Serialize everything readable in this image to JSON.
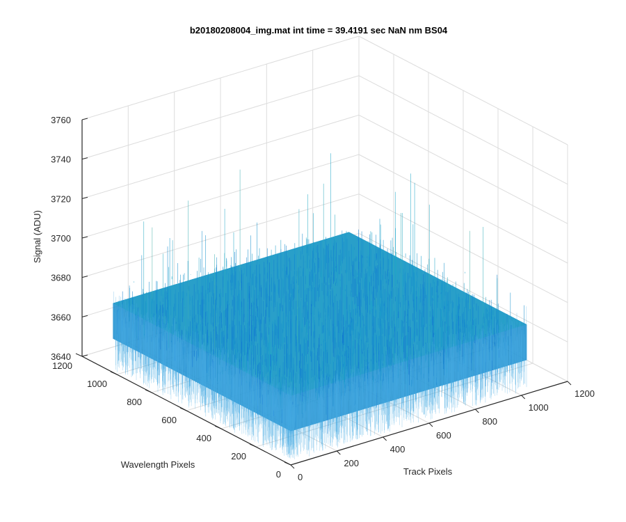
{
  "chart_data": {
    "type": "surface",
    "title": "b20180208004_img.mat int time = 39.4191 sec  NaN nm BS04",
    "xlabel": "Track Pixels",
    "ylabel": "Wavelength Pixels",
    "zlabel": "Signal (ADU)",
    "xlim": [
      0,
      1200
    ],
    "ylim": [
      0,
      1200
    ],
    "zlim": [
      3640,
      3760
    ],
    "xticks": [
      "0",
      "200",
      "400",
      "600",
      "800",
      "1000",
      "1200"
    ],
    "yticks": [
      "0",
      "200",
      "400",
      "600",
      "800",
      "1000",
      "1200"
    ],
    "zticks": [
      "3640",
      "3660",
      "3680",
      "3700",
      "3720",
      "3740",
      "3760"
    ],
    "data_extent": {
      "x": [
        1,
        1024
      ],
      "y": [
        1,
        1024
      ]
    },
    "signal_mean": 3671,
    "signal_noise_range": [
      3645,
      3730
    ],
    "grid": true,
    "colormap": "parula",
    "colors": {
      "low": "#0b63d6",
      "mid": "#1ea6c9",
      "high": "#b9d26a",
      "axis": "#262626",
      "grid": "#dcdcdc"
    }
  }
}
